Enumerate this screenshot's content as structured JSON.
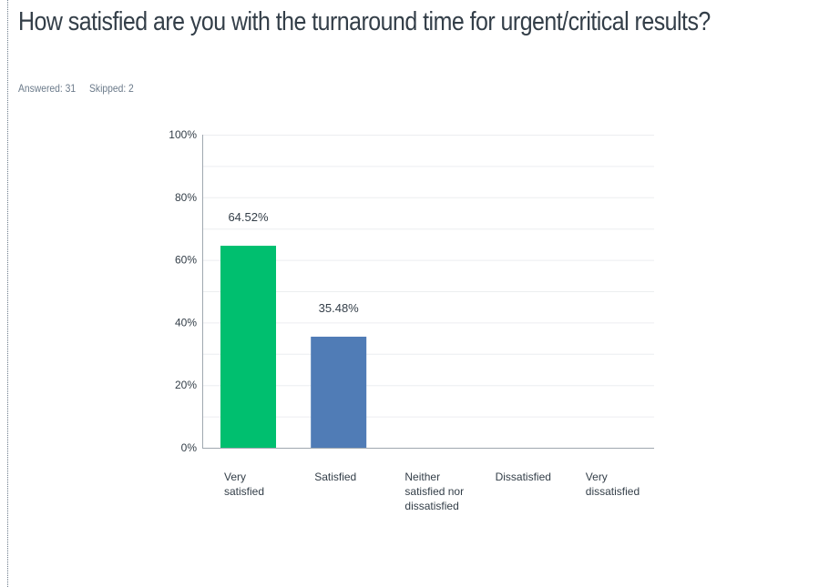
{
  "question": {
    "title": "How satisfied are you with the turnaround time for urgent/critical results?",
    "answered_label": "Answered: 31",
    "skipped_label": "Skipped: 2"
  },
  "colors": {
    "very_satisfied": "#00bf6f",
    "satisfied": "#507cb6",
    "grid": "#eceef0",
    "axis": "#a0a8b0",
    "text": "#333e48"
  },
  "chart_data": {
    "type": "bar",
    "categories": [
      [
        "Very",
        "satisfied"
      ],
      [
        "Satisfied"
      ],
      [
        "Neither",
        "satisfied nor",
        "dissatisfied"
      ],
      [
        "Dissatisfied"
      ],
      [
        "Very",
        "dissatisfied"
      ]
    ],
    "values": [
      64.52,
      35.48,
      0,
      0,
      0
    ],
    "data_labels": [
      "64.52%",
      "35.48%",
      "",
      "",
      ""
    ],
    "bar_colors": [
      "#00bf6f",
      "#507cb6",
      "#00bf6f",
      "#00bf6f",
      "#00bf6f"
    ],
    "ylim": [
      0,
      100
    ],
    "yticks": [
      "0%",
      "20%",
      "40%",
      "60%",
      "80%",
      "100%"
    ],
    "grid": true,
    "xlabel": "",
    "ylabel": ""
  }
}
